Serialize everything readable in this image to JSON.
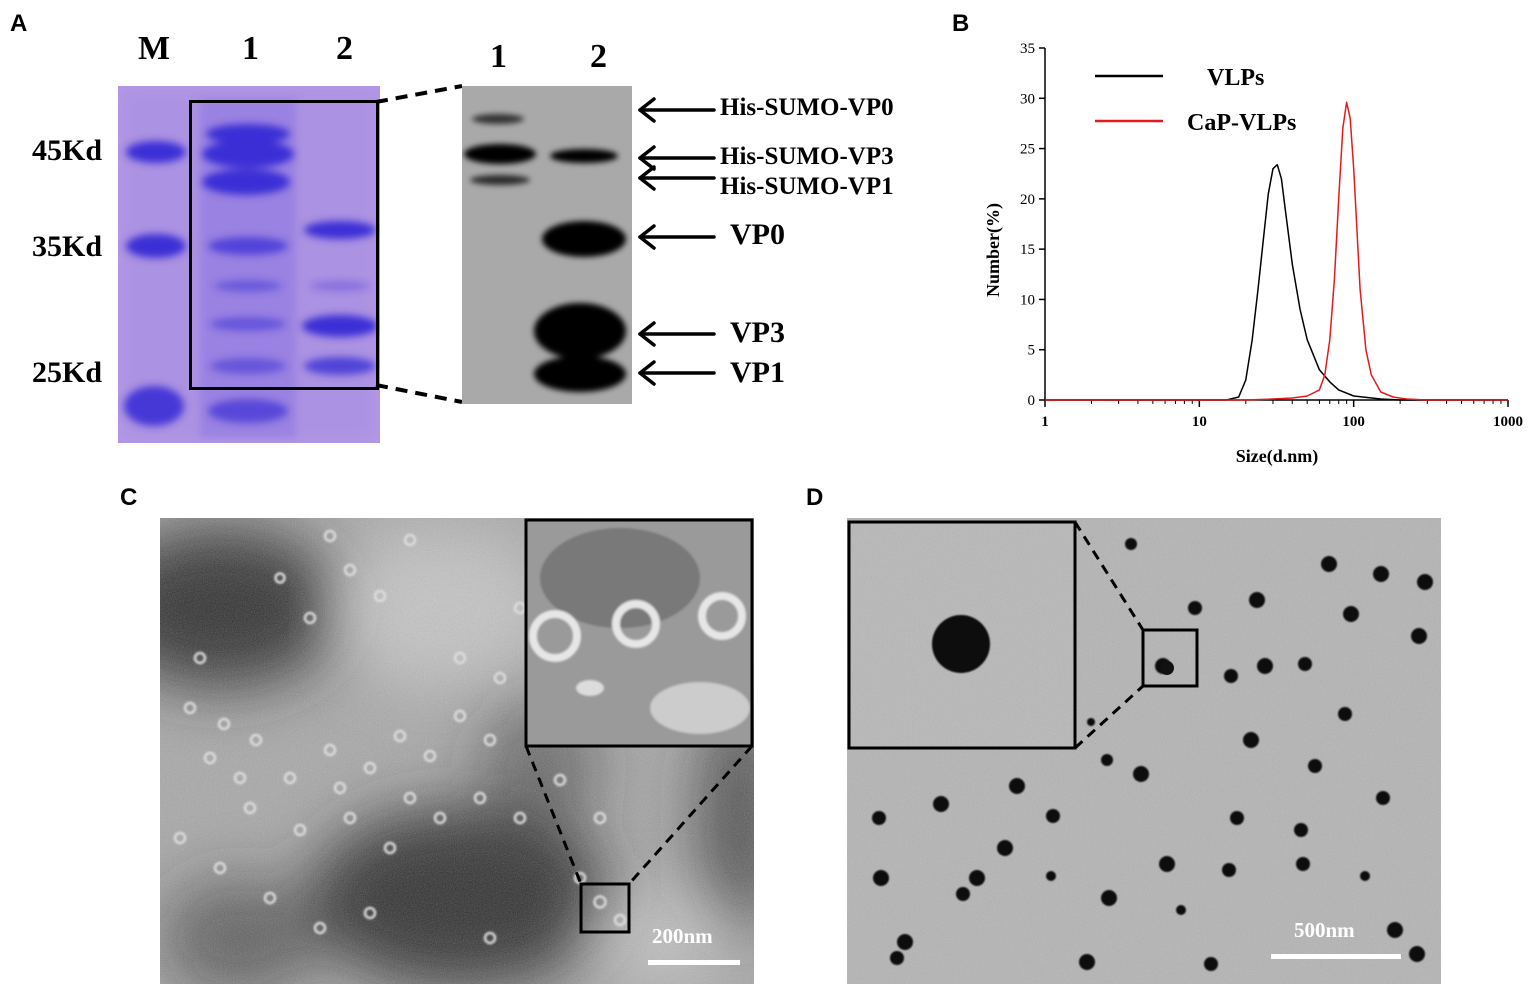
{
  "figure": {
    "panels": {
      "A": {
        "letter": "A",
        "gel_lanes": [
          "M",
          "1",
          "2"
        ],
        "markers": [
          "45Kd",
          "35Kd",
          "25Kd"
        ],
        "blot_lanes": [
          "1",
          "2"
        ],
        "band_labels": [
          "His-SUMO-VP0",
          "His-SUMO-VP3",
          "His-SUMO-VP1",
          "VP0",
          "VP3",
          "VP1"
        ],
        "colors": {
          "gel_bg": "#b49ae6",
          "gel_band": "#3a2fd6",
          "blot_bg": "#a9a9a9"
        }
      },
      "B": {
        "letter": "B",
        "chart_data": {
          "type": "line",
          "title": "",
          "xlabel": "Size(d.nm)",
          "ylabel": "Number(%)",
          "xscale": "log",
          "xlim": [
            1,
            1000
          ],
          "ylim": [
            0,
            35
          ],
          "xticks": [
            "1",
            "10",
            "100",
            "1000"
          ],
          "yticks": [
            "0",
            "5",
            "10",
            "15",
            "20",
            "25",
            "30",
            "35"
          ],
          "grid": false,
          "legend_position": "top-left",
          "series": [
            {
              "name": "VLPs",
              "color": "#000000",
              "x": [
                1,
                10,
                15,
                18,
                20,
                22,
                24,
                26,
                28,
                30,
                32,
                34,
                36,
                40,
                45,
                50,
                60,
                70,
                80,
                100,
                150,
                200,
                1000
              ],
              "y": [
                0,
                0,
                0,
                0.3,
                2,
                6,
                11,
                16,
                20.5,
                23,
                23.4,
                22,
                19,
                13.5,
                9,
                6,
                3,
                1.8,
                1,
                0.4,
                0.1,
                0,
                0
              ]
            },
            {
              "name": "CaP-VLPs",
              "color": "#e41a1c",
              "x": [
                1,
                20,
                30,
                40,
                50,
                60,
                65,
                70,
                75,
                80,
                85,
                90,
                95,
                100,
                105,
                110,
                120,
                130,
                150,
                180,
                220,
                300,
                1000
              ],
              "y": [
                0,
                0,
                0.1,
                0.2,
                0.4,
                1,
                2.5,
                6,
                12,
                20,
                27,
                29.6,
                28,
                23,
                17,
                11,
                5,
                2.5,
                0.8,
                0.3,
                0.1,
                0,
                0
              ]
            }
          ]
        }
      },
      "C": {
        "letter": "C",
        "scale_bar": "200nm"
      },
      "D": {
        "letter": "D",
        "scale_bar": "500nm"
      }
    }
  }
}
